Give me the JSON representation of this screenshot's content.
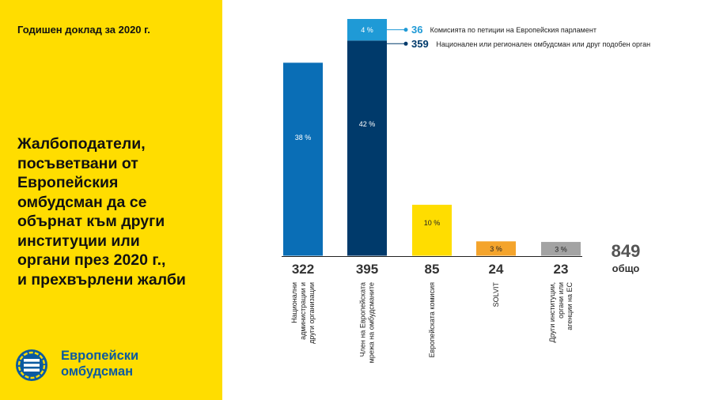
{
  "header": {
    "report_label": "Годишен доклад за 2020 г."
  },
  "title_lines": [
    "Жалбоподатели,",
    "посъветвани от",
    "Европейския",
    "омбудсман да се",
    "обърнат към други",
    "институции или",
    "органи през 2020 г.,",
    "и прехвърлени жалби"
  ],
  "logo": {
    "icon": "euro-ombudsman-logo-icon",
    "line1": "Европейски",
    "line2": "омбудсман"
  },
  "colors": {
    "panel": "#ffdd00",
    "blue": "#0a6eb6",
    "navy": "#003a6b",
    "light_blue": "#1f9ad6",
    "yellow": "#ffdd00",
    "orange": "#f4a42c",
    "gray": "#a3a3a3"
  },
  "chart_data": {
    "type": "bar",
    "ylim": [
      0,
      395
    ],
    "categories": [
      {
        "count": 322,
        "label_lines": [
          "Национални",
          "администрации и",
          "други организации"
        ],
        "segments": [
          {
            "value": 322,
            "pct": "38 %",
            "color": "#0a6eb6"
          }
        ]
      },
      {
        "count": 395,
        "label_lines": [
          "Член на Европейската",
          "мрежа на омбудсманите"
        ],
        "segments": [
          {
            "value": 359,
            "pct": "42 %",
            "color": "#003a6b"
          },
          {
            "value": 36,
            "pct": "4 %",
            "color": "#1f9ad6"
          }
        ]
      },
      {
        "count": 85,
        "label_lines": [
          "Европейската комисия"
        ],
        "segments": [
          {
            "value": 85,
            "pct": "10 %",
            "color": "#ffdd00"
          }
        ]
      },
      {
        "count": 24,
        "label_lines": [
          "SOLVIT"
        ],
        "segments": [
          {
            "value": 24,
            "pct": "3 %",
            "color": "#f4a42c"
          }
        ]
      },
      {
        "count": 23,
        "label_lines": [
          "Други институции,",
          "органи или",
          "агенции на ЕС"
        ],
        "segments": [
          {
            "value": 23,
            "pct": "3 %",
            "color": "#a3a3a3"
          }
        ]
      }
    ],
    "callouts": [
      {
        "value": 36,
        "text": "Комисията по петиции на Европейския парламент",
        "color": "#1f9ad6"
      },
      {
        "value": 359,
        "text": "Национален или регионален омбудсман или друг подобен орган",
        "color": "#003a6b"
      }
    ],
    "total": {
      "value": 849,
      "label": "общо"
    }
  }
}
